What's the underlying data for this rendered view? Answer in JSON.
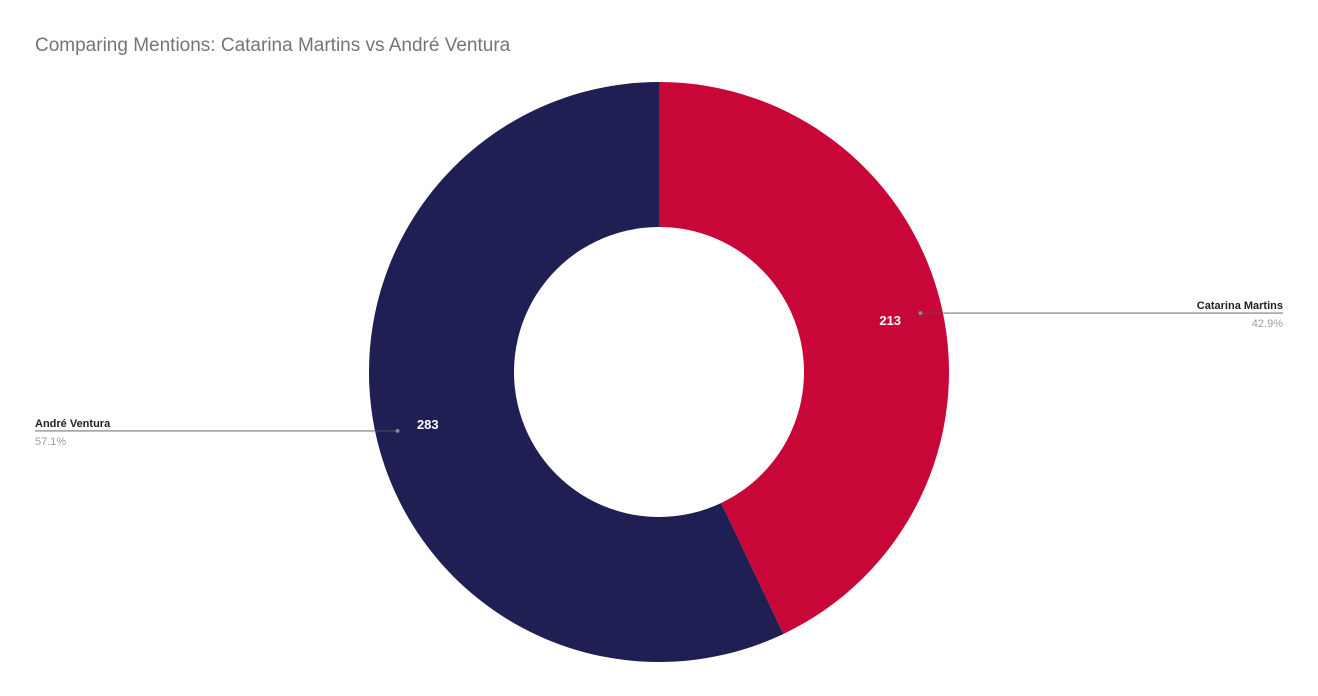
{
  "chart_data": {
    "type": "pie",
    "variant": "donut",
    "title": "Comparing Mentions: Catarina Martins vs André Ventura",
    "slices": [
      {
        "label": "Catarina Martins",
        "value": 213,
        "percent_label": "42.9%",
        "color": "#c90638"
      },
      {
        "label": "André Ventura",
        "value": 283,
        "percent_label": "57.1%",
        "color": "#201f53"
      }
    ],
    "start_angle_deg": 0,
    "direction": "clockwise",
    "legend": "none",
    "leader_line_color": "#555555",
    "label_name_color": "#222222",
    "label_percent_color": "#9e9e9e",
    "data_label_color": "#ffffff"
  }
}
